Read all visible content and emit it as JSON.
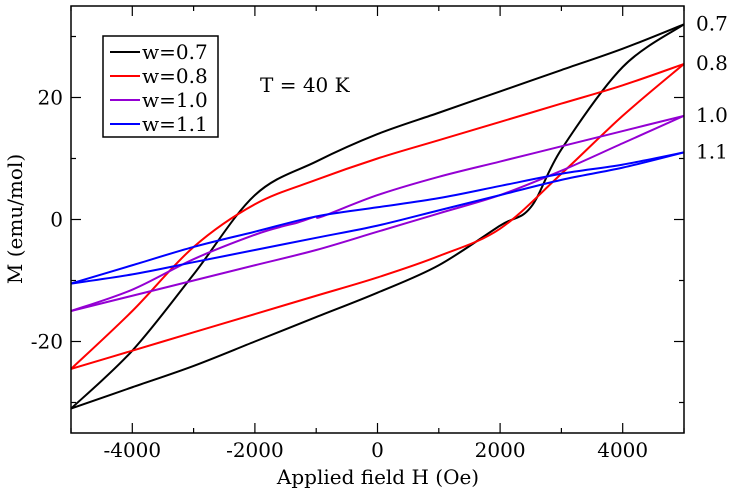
{
  "chart_data": {
    "type": "line",
    "title": "",
    "xlabel": "Applied field H (Oe)",
    "ylabel": "M (emu/mol)",
    "xlim": [
      -5000,
      5000
    ],
    "ylim": [
      -35,
      35
    ],
    "x_ticks": [
      -4000,
      -2000,
      0,
      2000,
      4000
    ],
    "x_tick_labels": [
      "-4000",
      "-2000",
      "0",
      "2000",
      "4000"
    ],
    "y_ticks": [
      -20,
      0,
      20
    ],
    "y_tick_labels": [
      "-20",
      "0",
      "20"
    ],
    "annotation": "T = 40 K",
    "legend_position": "top-left",
    "series": [
      {
        "name": "w=0.7",
        "color": "#000000",
        "end_label": "0.7",
        "upper": [
          [
            -5000,
            -31
          ],
          [
            -4000,
            -21.5
          ],
          [
            -3000,
            -9
          ],
          [
            -2000,
            4
          ],
          [
            -1000,
            9.5
          ],
          [
            0,
            14
          ],
          [
            1000,
            17.5
          ],
          [
            2000,
            21
          ],
          [
            3000,
            24.5
          ],
          [
            4000,
            28
          ],
          [
            5000,
            32
          ]
        ],
        "lower": [
          [
            -5000,
            -31
          ],
          [
            -4000,
            -27.5
          ],
          [
            -3000,
            -24
          ],
          [
            -2000,
            -20
          ],
          [
            -1000,
            -16
          ],
          [
            0,
            -12
          ],
          [
            1000,
            -7.5
          ],
          [
            2000,
            -1
          ],
          [
            2500,
            2
          ],
          [
            3000,
            11.5
          ],
          [
            4000,
            25
          ],
          [
            5000,
            32
          ]
        ]
      },
      {
        "name": "w=0.8",
        "color": "#ff0000",
        "end_label": "0.8",
        "upper": [
          [
            -5000,
            -24.5
          ],
          [
            -4000,
            -15
          ],
          [
            -3000,
            -4.5
          ],
          [
            -2000,
            2.5
          ],
          [
            -1000,
            6.5
          ],
          [
            0,
            10
          ],
          [
            1000,
            13
          ],
          [
            2000,
            16
          ],
          [
            3000,
            19
          ],
          [
            4000,
            22
          ],
          [
            5000,
            25.5
          ]
        ],
        "lower": [
          [
            -5000,
            -24.5
          ],
          [
            -4000,
            -21.5
          ],
          [
            -3000,
            -18.5
          ],
          [
            -2000,
            -15.5
          ],
          [
            -1000,
            -12.5
          ],
          [
            0,
            -9.5
          ],
          [
            1000,
            -6
          ],
          [
            2000,
            -1.5
          ],
          [
            3000,
            7.5
          ],
          [
            4000,
            17
          ],
          [
            5000,
            25.5
          ]
        ]
      },
      {
        "name": "w=1.0",
        "color": "#9400d3",
        "end_label": "1.0",
        "upper": [
          [
            -5000,
            -15
          ],
          [
            -4000,
            -11.5
          ],
          [
            -3000,
            -6.5
          ],
          [
            -2000,
            -2.5
          ],
          [
            -1500,
            -1
          ],
          [
            -1300,
            -0.5
          ],
          [
            -1000,
            0.5
          ],
          [
            -900,
            0.5
          ],
          [
            0,
            4
          ],
          [
            1000,
            7
          ],
          [
            2000,
            9.5
          ],
          [
            3000,
            12
          ],
          [
            4000,
            14.5
          ],
          [
            5000,
            17
          ]
        ],
        "lower": [
          [
            -5000,
            -15
          ],
          [
            -4000,
            -12.5
          ],
          [
            -3000,
            -10
          ],
          [
            -2000,
            -7.5
          ],
          [
            -1000,
            -5
          ],
          [
            0,
            -2
          ],
          [
            1000,
            1
          ],
          [
            2000,
            4
          ],
          [
            3000,
            8
          ],
          [
            4000,
            12.5
          ],
          [
            5000,
            17
          ]
        ]
      },
      {
        "name": "w=1.1",
        "color": "#0000ff",
        "end_label": "1.1",
        "upper": [
          [
            -5000,
            -10.5
          ],
          [
            -4000,
            -7.5
          ],
          [
            -3000,
            -4.5
          ],
          [
            -2000,
            -2
          ],
          [
            -1000,
            0.5
          ],
          [
            0,
            2
          ],
          [
            1000,
            3.5
          ],
          [
            2000,
            5.5
          ],
          [
            3000,
            7.5
          ],
          [
            4000,
            9
          ],
          [
            5000,
            11
          ]
        ],
        "lower": [
          [
            -5000,
            -10.5
          ],
          [
            -4000,
            -9
          ],
          [
            -3000,
            -7
          ],
          [
            -2000,
            -5
          ],
          [
            -1000,
            -3
          ],
          [
            0,
            -1
          ],
          [
            1000,
            1.5
          ],
          [
            2000,
            4
          ],
          [
            3000,
            6.5
          ],
          [
            4000,
            8.5
          ],
          [
            5000,
            11
          ]
        ]
      }
    ]
  }
}
